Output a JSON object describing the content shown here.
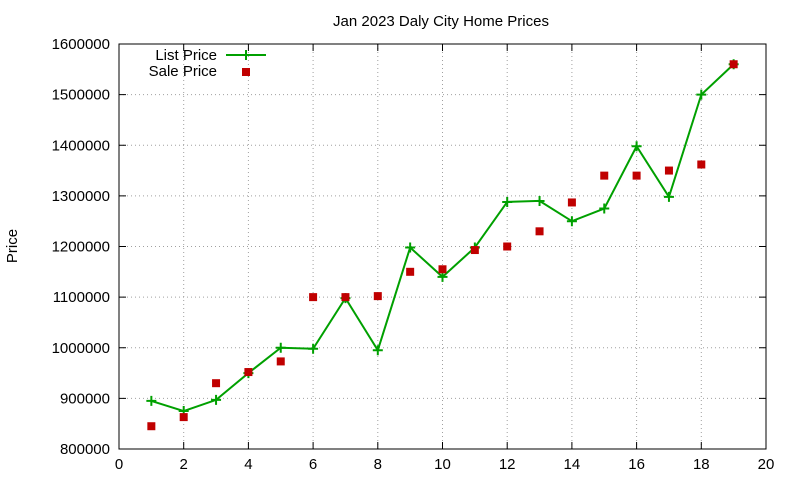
{
  "chart_data": {
    "type": "line",
    "title": "Jan 2023 Daly City Home Prices",
    "xlabel": "",
    "ylabel": "Price",
    "xlim": [
      0,
      20
    ],
    "ylim": [
      800000,
      1600000
    ],
    "xticks": [
      0,
      2,
      4,
      6,
      8,
      10,
      12,
      14,
      16,
      18,
      20
    ],
    "yticks": [
      800000,
      900000,
      1000000,
      1100000,
      1200000,
      1300000,
      1400000,
      1500000,
      1600000
    ],
    "grid": true,
    "legend_position": "top-left",
    "series": [
      {
        "name": "List Price",
        "style": "line-with-plus-markers",
        "color": "#00a000",
        "x": [
          1,
          2,
          3,
          4,
          5,
          6,
          7,
          8,
          9,
          10,
          11,
          12,
          13,
          14,
          15,
          16,
          17,
          18,
          19
        ],
        "values": [
          895000,
          875000,
          897000,
          950000,
          1000000,
          998000,
          1098000,
          995000,
          1198000,
          1140000,
          1198000,
          1288000,
          1290000,
          1250000,
          1275000,
          1398000,
          1298000,
          1500000,
          1560000
        ]
      },
      {
        "name": "Sale Price",
        "style": "square-markers",
        "color": "#c00000",
        "x": [
          1,
          2,
          3,
          4,
          5,
          6,
          7,
          8,
          9,
          10,
          11,
          12,
          13,
          14,
          15,
          16,
          17,
          18,
          19
        ],
        "values": [
          845000,
          863000,
          930000,
          952000,
          973000,
          1100000,
          1100000,
          1102000,
          1150000,
          1155000,
          1193000,
          1200000,
          1230000,
          1287000,
          1340000,
          1340000,
          1350000,
          1362000,
          1560000
        ]
      }
    ]
  }
}
